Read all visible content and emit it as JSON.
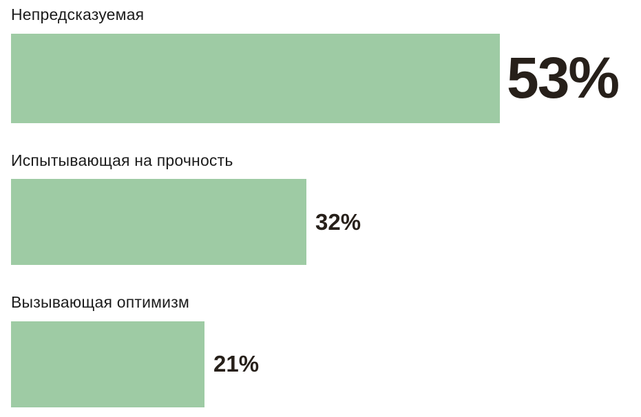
{
  "chart_data": {
    "type": "bar",
    "orientation": "horizontal",
    "title": "",
    "xlabel": "",
    "ylabel": "",
    "categories": [
      "Непредсказуемая",
      "Испытывающая на прочность",
      "Вызывающая оптимизм"
    ],
    "values": [
      53,
      32,
      21
    ],
    "value_labels": [
      "53%",
      "32%",
      "21%"
    ],
    "xlim": [
      0,
      53
    ],
    "grid": false,
    "legend": false,
    "bar_color": "#9ecba4",
    "category_label_color": "#1c1c1c",
    "value_label_color": "#27201a",
    "background_color": "#ffffff"
  }
}
